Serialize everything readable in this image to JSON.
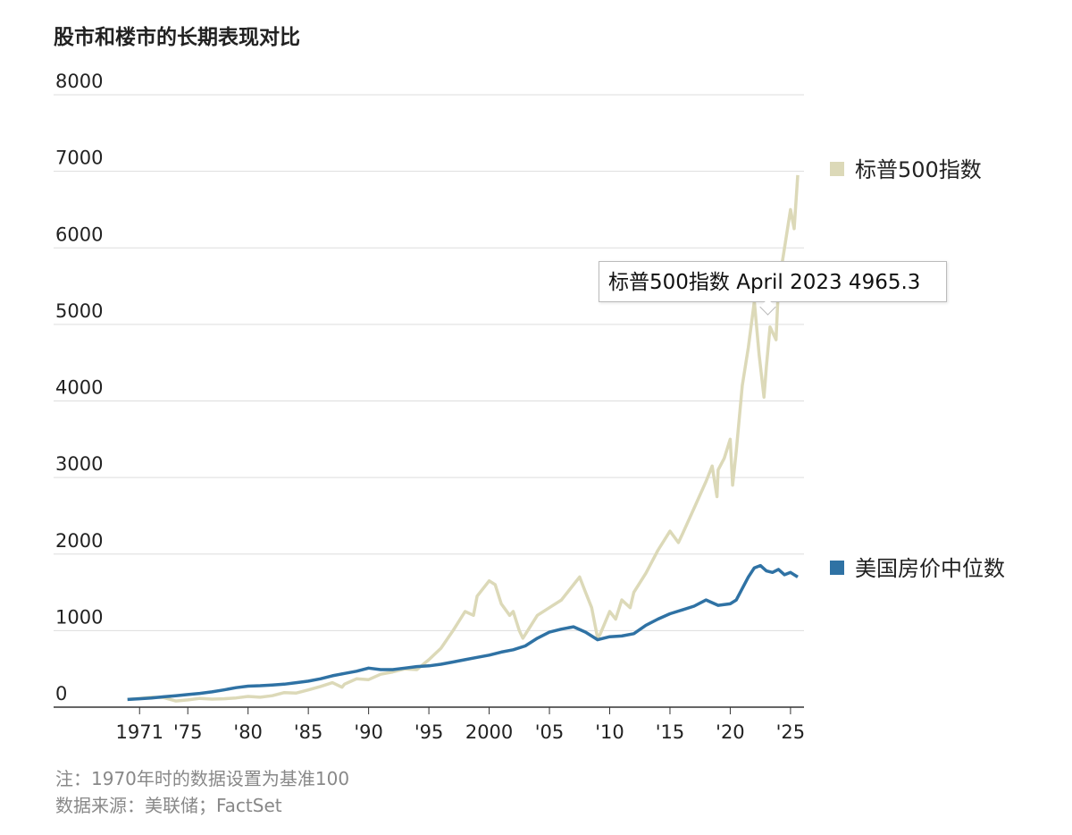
{
  "title": "股市和楼市的长期表现对比",
  "notes": {
    "line1": "注：1970年时的数据设置为基准100",
    "line2": "数据来源：美联储；FactSet"
  },
  "tooltip": {
    "text": "标普500指数 April 2023 4965.3"
  },
  "chart_data": {
    "type": "line",
    "title": "股市和楼市的长期表现对比",
    "xlabel": "",
    "ylabel": "",
    "xlim": [
      1969.5,
      2025.6
    ],
    "ylim": [
      0,
      8000
    ],
    "yticks": [
      0,
      1000,
      2000,
      3000,
      4000,
      5000,
      6000,
      7000,
      8000
    ],
    "ytick_labels": [
      "0",
      "1000",
      "2000",
      "3000",
      "4000",
      "5000",
      "6000",
      "7000",
      "8000"
    ],
    "xticks": [
      1971,
      1975,
      1980,
      1985,
      1990,
      1995,
      2000,
      2005,
      2010,
      2015,
      2020,
      2025
    ],
    "xtick_labels": [
      "1971",
      "'75",
      "'80",
      "'85",
      "'90",
      "'95",
      "2000",
      "'05",
      "'10",
      "'15",
      "'20",
      "'25"
    ],
    "grid": "horizontal",
    "legend": "right",
    "series": [
      {
        "name": "标普500指数",
        "color": "#dcd9b8",
        "points": [
          [
            1970.0,
            100
          ],
          [
            1971.0,
            115
          ],
          [
            1972.0,
            130
          ],
          [
            1973.0,
            125
          ],
          [
            1974.0,
            80
          ],
          [
            1975.0,
            95
          ],
          [
            1976.0,
            115
          ],
          [
            1977.0,
            105
          ],
          [
            1978.0,
            110
          ],
          [
            1979.0,
            120
          ],
          [
            1980.0,
            140
          ],
          [
            1981.0,
            130
          ],
          [
            1982.0,
            150
          ],
          [
            1983.0,
            190
          ],
          [
            1984.0,
            185
          ],
          [
            1985.0,
            225
          ],
          [
            1986.0,
            270
          ],
          [
            1987.0,
            320
          ],
          [
            1987.8,
            260
          ],
          [
            1988.0,
            300
          ],
          [
            1989.0,
            370
          ],
          [
            1990.0,
            360
          ],
          [
            1991.0,
            430
          ],
          [
            1992.0,
            460
          ],
          [
            1993.0,
            500
          ],
          [
            1994.0,
            490
          ],
          [
            1995.0,
            620
          ],
          [
            1996.0,
            770
          ],
          [
            1997.0,
            1000
          ],
          [
            1998.0,
            1250
          ],
          [
            1998.7,
            1200
          ],
          [
            1999.0,
            1450
          ],
          [
            2000.0,
            1650
          ],
          [
            2000.5,
            1600
          ],
          [
            2001.0,
            1350
          ],
          [
            2001.7,
            1200
          ],
          [
            2002.0,
            1250
          ],
          [
            2002.5,
            1000
          ],
          [
            2002.8,
            900
          ],
          [
            2003.0,
            950
          ],
          [
            2004.0,
            1200
          ],
          [
            2005.0,
            1300
          ],
          [
            2006.0,
            1400
          ],
          [
            2007.0,
            1600
          ],
          [
            2007.5,
            1700
          ],
          [
            2008.0,
            1500
          ],
          [
            2008.5,
            1300
          ],
          [
            2009.0,
            900
          ],
          [
            2009.2,
            950
          ],
          [
            2010.0,
            1250
          ],
          [
            2010.5,
            1150
          ],
          [
            2011.0,
            1400
          ],
          [
            2011.7,
            1300
          ],
          [
            2012.0,
            1500
          ],
          [
            2013.0,
            1750
          ],
          [
            2014.0,
            2050
          ],
          [
            2015.0,
            2300
          ],
          [
            2015.7,
            2150
          ],
          [
            2016.0,
            2250
          ],
          [
            2017.0,
            2600
          ],
          [
            2018.0,
            2950
          ],
          [
            2018.5,
            3150
          ],
          [
            2018.9,
            2750
          ],
          [
            2019.0,
            3100
          ],
          [
            2019.5,
            3250
          ],
          [
            2020.0,
            3500
          ],
          [
            2020.2,
            2900
          ],
          [
            2020.5,
            3350
          ],
          [
            2021.0,
            4200
          ],
          [
            2021.5,
            4700
          ],
          [
            2022.0,
            5300
          ],
          [
            2022.4,
            4600
          ],
          [
            2022.8,
            4050
          ],
          [
            2023.0,
            4450
          ],
          [
            2023.3,
            4965.3
          ],
          [
            2023.8,
            4800
          ],
          [
            2024.0,
            5500
          ],
          [
            2024.5,
            6000
          ],
          [
            2025.0,
            6500
          ],
          [
            2025.3,
            6250
          ],
          [
            2025.6,
            6950
          ]
        ]
      },
      {
        "name": "美国房价中位数",
        "color": "#2f72a4",
        "points": [
          [
            1970.0,
            100
          ],
          [
            1971.0,
            110
          ],
          [
            1972.0,
            120
          ],
          [
            1973.0,
            135
          ],
          [
            1974.0,
            150
          ],
          [
            1975.0,
            165
          ],
          [
            1976.0,
            180
          ],
          [
            1977.0,
            200
          ],
          [
            1978.0,
            225
          ],
          [
            1979.0,
            255
          ],
          [
            1980.0,
            275
          ],
          [
            1981.0,
            280
          ],
          [
            1982.0,
            290
          ],
          [
            1983.0,
            300
          ],
          [
            1984.0,
            320
          ],
          [
            1985.0,
            340
          ],
          [
            1986.0,
            370
          ],
          [
            1987.0,
            410
          ],
          [
            1988.0,
            440
          ],
          [
            1989.0,
            470
          ],
          [
            1990.0,
            510
          ],
          [
            1991.0,
            490
          ],
          [
            1992.0,
            490
          ],
          [
            1993.0,
            510
          ],
          [
            1994.0,
            530
          ],
          [
            1995.0,
            540
          ],
          [
            1996.0,
            560
          ],
          [
            1997.0,
            590
          ],
          [
            1998.0,
            620
          ],
          [
            1999.0,
            650
          ],
          [
            2000.0,
            680
          ],
          [
            2001.0,
            720
          ],
          [
            2002.0,
            750
          ],
          [
            2003.0,
            800
          ],
          [
            2004.0,
            900
          ],
          [
            2005.0,
            980
          ],
          [
            2006.0,
            1020
          ],
          [
            2007.0,
            1050
          ],
          [
            2008.0,
            980
          ],
          [
            2009.0,
            880
          ],
          [
            2010.0,
            920
          ],
          [
            2011.0,
            930
          ],
          [
            2012.0,
            960
          ],
          [
            2013.0,
            1070
          ],
          [
            2014.0,
            1150
          ],
          [
            2015.0,
            1220
          ],
          [
            2016.0,
            1270
          ],
          [
            2017.0,
            1320
          ],
          [
            2018.0,
            1400
          ],
          [
            2019.0,
            1330
          ],
          [
            2020.0,
            1350
          ],
          [
            2020.5,
            1400
          ],
          [
            2021.0,
            1550
          ],
          [
            2021.5,
            1700
          ],
          [
            2022.0,
            1820
          ],
          [
            2022.5,
            1850
          ],
          [
            2023.0,
            1780
          ],
          [
            2023.5,
            1760
          ],
          [
            2024.0,
            1800
          ],
          [
            2024.5,
            1730
          ],
          [
            2025.0,
            1760
          ],
          [
            2025.6,
            1700
          ]
        ]
      }
    ]
  }
}
